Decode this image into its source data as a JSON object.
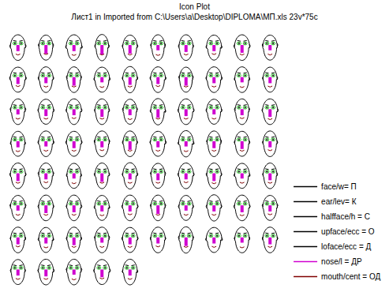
{
  "chart_data": {
    "type": "icon",
    "title": "Icon Plot",
    "subtitle": "Лист1 in Imported from C:\\Users\\a\\Desktop\\DIPLOMA\\МП.xls 23v*75c",
    "tick_labels": false,
    "legend": "right",
    "series": [
      {
        "name": "face/w= П",
        "color": "#000000",
        "values": [
          0.6,
          0.5,
          0.6,
          0.4,
          0.5,
          0.4,
          0.5,
          0.5,
          0.6,
          0.5,
          0.6,
          0.5,
          0.5,
          0.6,
          0.5,
          0.5,
          0.4,
          0.6,
          0.5,
          0.5,
          0.5,
          0.6,
          0.5,
          0.5,
          0.4,
          0.5,
          0.6,
          0.5,
          0.5,
          0.6,
          0.5,
          0.5,
          0.6,
          0.5,
          0.5,
          0.6,
          0.5,
          0.4,
          0.5,
          0.5,
          0.6,
          0.5,
          0.5,
          0.4,
          0.5,
          0.5,
          0.6,
          0.5,
          0.5,
          0.4,
          0.5,
          0.6,
          0.5,
          0.5,
          0.6,
          0.4,
          0.5,
          0.5,
          0.6,
          0.5,
          0.5,
          0.5,
          0.4,
          0.5,
          0.6,
          0.5,
          0.5,
          0.6,
          0.5,
          0.5,
          0.5,
          0.6,
          0.5,
          0.6,
          0.5
        ]
      },
      {
        "name": "ear/lev= К",
        "color": "#000000",
        "values": [
          0.5,
          0.6,
          0.4,
          0.5,
          0.5,
          0.6,
          0.5,
          0.4,
          0.5,
          0.6,
          0.5,
          0.5,
          0.6,
          0.4,
          0.5,
          0.5,
          0.6,
          0.5,
          0.4,
          0.5,
          0.6,
          0.5,
          0.5,
          0.5,
          0.6,
          0.4,
          0.5,
          0.5,
          0.6,
          0.5,
          0.4,
          0.5,
          0.5,
          0.6,
          0.5,
          0.5,
          0.4,
          0.6,
          0.5,
          0.5,
          0.5,
          0.6,
          0.4,
          0.5,
          0.5,
          0.6,
          0.5,
          0.5,
          0.4,
          0.5,
          0.6,
          0.5,
          0.5,
          0.4,
          0.5,
          0.6,
          0.5,
          0.5,
          0.5,
          0.6,
          0.5,
          0.4,
          0.5,
          0.6,
          0.5,
          0.5,
          0.6,
          0.4,
          0.5,
          0.5,
          0.5,
          0.5,
          0.6,
          0.5,
          0.4
        ]
      },
      {
        "name": "halfface/h = С",
        "color": "#000000",
        "values": [
          0.7,
          0.6,
          0.7,
          0.8,
          0.6,
          0.7,
          0.7,
          0.6,
          0.7,
          0.6,
          0.6,
          0.7,
          0.7,
          0.6,
          0.8,
          0.7,
          0.6,
          0.7,
          0.7,
          0.6,
          0.7,
          0.6,
          0.7,
          0.7,
          0.6,
          0.8,
          0.7,
          0.6,
          0.7,
          0.7,
          0.6,
          0.7,
          0.6,
          0.7,
          0.7,
          0.6,
          0.8,
          0.7,
          0.6,
          0.7,
          0.7,
          0.7,
          0.6,
          0.7,
          0.8,
          0.6,
          0.7,
          0.7,
          0.6,
          0.7,
          0.6,
          0.7,
          0.7,
          0.6,
          0.7,
          0.7,
          0.6,
          0.8,
          0.7,
          0.6,
          0.7,
          0.6,
          0.7,
          0.7,
          0.6,
          0.7,
          0.8,
          0.6,
          0.7,
          0.7,
          0.6,
          0.7,
          0.7,
          0.6,
          0.7
        ]
      },
      {
        "name": "upface/ecc = О",
        "color": "#000000",
        "values": [
          0.5,
          0.4,
          0.6,
          0.4,
          0.5,
          0.5,
          0.4,
          0.6,
          0.5,
          0.5,
          0.6,
          0.5,
          0.4,
          0.5,
          0.5,
          0.6,
          0.4,
          0.5,
          0.5,
          0.4,
          0.5,
          0.5,
          0.6,
          0.4,
          0.5,
          0.5,
          0.5,
          0.6,
          0.4,
          0.5,
          0.4,
          0.6,
          0.5,
          0.5,
          0.4,
          0.5,
          0.6,
          0.5,
          0.5,
          0.4,
          0.5,
          0.5,
          0.4,
          0.6,
          0.5,
          0.4,
          0.5,
          0.5,
          0.6,
          0.5,
          0.6,
          0.4,
          0.5,
          0.5,
          0.5,
          0.6,
          0.4,
          0.5,
          0.5,
          0.5,
          0.5,
          0.5,
          0.6,
          0.4,
          0.5,
          0.5,
          0.4,
          0.6,
          0.5,
          0.5,
          0.4,
          0.5,
          0.5,
          0.6,
          0.5
        ]
      },
      {
        "name": "loface/ecc = Д",
        "color": "#000000",
        "values": [
          0.4,
          0.5,
          0.4,
          0.3,
          0.5,
          0.4,
          0.5,
          0.4,
          0.4,
          0.5,
          0.5,
          0.4,
          0.4,
          0.5,
          0.3,
          0.4,
          0.5,
          0.4,
          0.5,
          0.4,
          0.4,
          0.5,
          0.4,
          0.4,
          0.5,
          0.3,
          0.4,
          0.5,
          0.4,
          0.4,
          0.5,
          0.4,
          0.4,
          0.5,
          0.4,
          0.4,
          0.3,
          0.4,
          0.5,
          0.4,
          0.4,
          0.4,
          0.5,
          0.4,
          0.3,
          0.5,
          0.4,
          0.4,
          0.4,
          0.5,
          0.4,
          0.5,
          0.4,
          0.4,
          0.4,
          0.5,
          0.4,
          0.3,
          0.4,
          0.5,
          0.4,
          0.4,
          0.5,
          0.4,
          0.4,
          0.5,
          0.3,
          0.4,
          0.5,
          0.4,
          0.5,
          0.4,
          0.4,
          0.5,
          0.4
        ]
      },
      {
        "name": "nose/l = ДР",
        "color": "#d000d0",
        "values": [
          0.5,
          0.8,
          0.5,
          0.9,
          0.8,
          0.4,
          0.6,
          0.5,
          0.7,
          0.4,
          0.6,
          0.5,
          0.8,
          0.4,
          0.7,
          0.6,
          0.8,
          0.5,
          0.4,
          0.5,
          0.4,
          0.6,
          0.5,
          0.7,
          0.5,
          0.8,
          0.6,
          0.4,
          0.5,
          0.7,
          0.5,
          0.4,
          0.6,
          0.5,
          0.8,
          0.5,
          0.4,
          0.6,
          0.7,
          0.5,
          0.7,
          0.5,
          0.4,
          0.8,
          0.5,
          0.6,
          0.5,
          0.7,
          0.4,
          0.6,
          0.4,
          0.7,
          0.6,
          0.5,
          0.5,
          0.8,
          0.4,
          0.5,
          0.6,
          0.5,
          0.6,
          0.5,
          0.7,
          0.4,
          0.6,
          0.5,
          0.8,
          0.5,
          0.4,
          0.6,
          0.5,
          0.6,
          0.4,
          0.7,
          0.5
        ]
      },
      {
        "name": "mouth/cent = ОД",
        "color": "#800000",
        "values": [
          0.5,
          0.4,
          0.6,
          0.5,
          0.5,
          0.6,
          0.5,
          0.4,
          0.5,
          0.5,
          0.4,
          0.5,
          0.5,
          0.6,
          0.5,
          0.4,
          0.5,
          0.5,
          0.6,
          0.5,
          0.5,
          0.5,
          0.4,
          0.5,
          0.6,
          0.5,
          0.5,
          0.5,
          0.4,
          0.6,
          0.6,
          0.5,
          0.5,
          0.4,
          0.5,
          0.5,
          0.6,
          0.5,
          0.5,
          0.4,
          0.5,
          0.4,
          0.6,
          0.5,
          0.5,
          0.5,
          0.4,
          0.6,
          0.5,
          0.5,
          0.5,
          0.5,
          0.5,
          0.6,
          0.4,
          0.5,
          0.5,
          0.5,
          0.6,
          0.4,
          0.4,
          0.6,
          0.5,
          0.5,
          0.5,
          0.4,
          0.5,
          0.5,
          0.6,
          0.5,
          0.5,
          0.5,
          0.6,
          0.4,
          0.5
        ]
      }
    ]
  }
}
